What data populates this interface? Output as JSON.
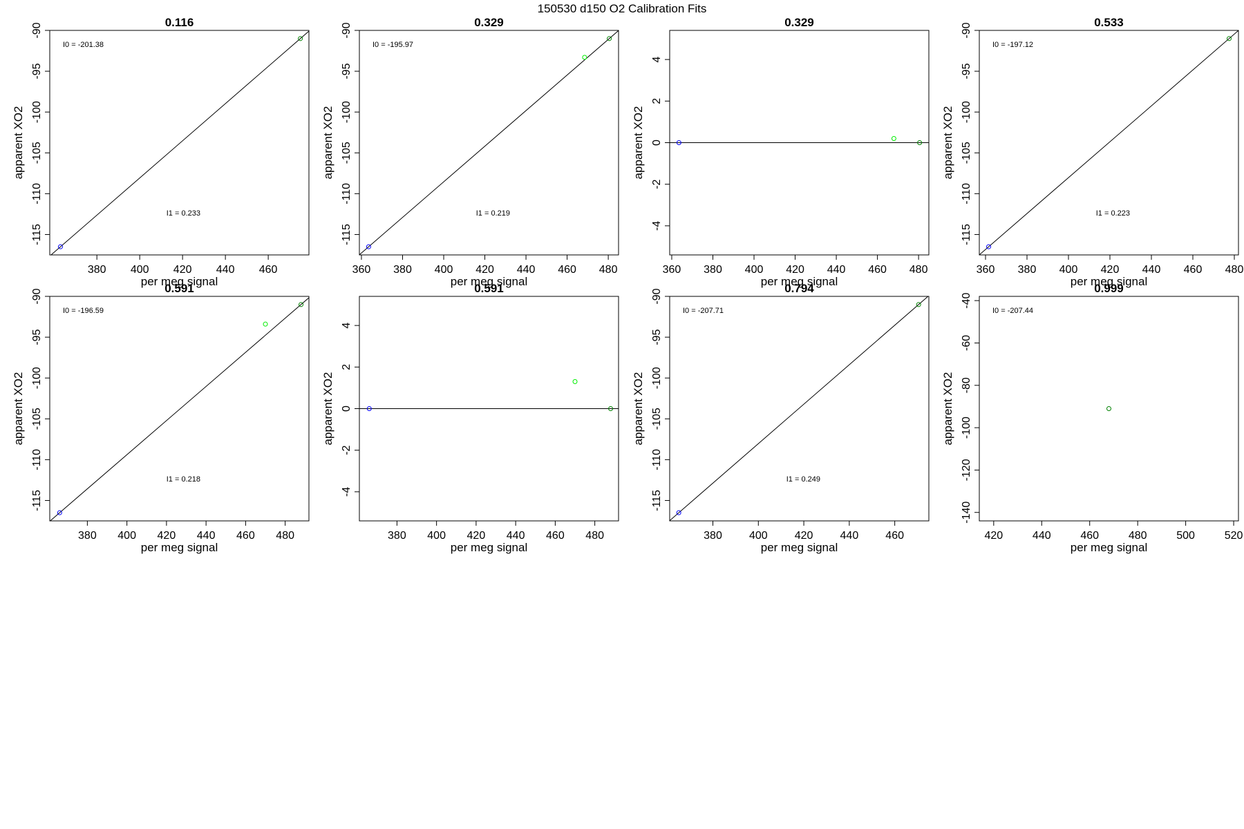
{
  "figure_title": "150530   d150   O2 Calibration Fits",
  "chart_data": [
    {
      "type": "scatter",
      "title": "0.116",
      "xlabel": "per meg signal",
      "ylabel": "apparent XO2",
      "xlim": [
        358,
        479
      ],
      "ylim": [
        -117.5,
        -90
      ],
      "xticks": [
        380,
        400,
        420,
        440,
        460
      ],
      "yticks": [
        -90,
        -95,
        -100,
        -105,
        -110,
        -115
      ],
      "points": [
        {
          "x": 363,
          "y": -116.5,
          "color": "#0000ff"
        },
        {
          "x": 475,
          "y": -91,
          "color": "#008000"
        }
      ],
      "fit_line": {
        "kind": "through",
        "x1": 363,
        "y1": -116.5,
        "x2": 475,
        "y2": -91
      },
      "annotations": {
        "i0": "I0 =  -201.38",
        "i1": "I1 =  0.233"
      }
    },
    {
      "type": "scatter",
      "title": "0.329",
      "xlabel": "per meg signal",
      "ylabel": "apparent XO2",
      "xlim": [
        359,
        485
      ],
      "ylim": [
        -117.5,
        -90
      ],
      "xticks": [
        360,
        380,
        400,
        420,
        440,
        460,
        480
      ],
      "yticks": [
        -90,
        -95,
        -100,
        -105,
        -110,
        -115
      ],
      "points": [
        {
          "x": 363.5,
          "y": -116.5,
          "color": "#0000ff"
        },
        {
          "x": 468.5,
          "y": -93.3,
          "color": "#00ee00"
        },
        {
          "x": 480.5,
          "y": -91,
          "color": "#008000"
        }
      ],
      "fit_line": {
        "kind": "through",
        "x1": 363.5,
        "y1": -116.5,
        "x2": 480.5,
        "y2": -91
      },
      "annotations": {
        "i0": "I0 =  -195.97",
        "i1": "I1 =  0.219"
      }
    },
    {
      "type": "scatter",
      "title": "0.329",
      "xlabel": "per meg signal",
      "ylabel": "apparent XO2",
      "xlim": [
        359,
        485
      ],
      "ylim": [
        -5.4,
        5.4
      ],
      "xticks": [
        360,
        380,
        400,
        420,
        440,
        460,
        480
      ],
      "yticks": [
        4,
        2,
        0,
        -2,
        -4
      ],
      "points": [
        {
          "x": 363.5,
          "y": 0,
          "color": "#0000ff"
        },
        {
          "x": 468,
          "y": 0.2,
          "color": "#00ee00"
        },
        {
          "x": 480.5,
          "y": 0,
          "color": "#008000"
        }
      ],
      "fit_line": {
        "kind": "horizontal",
        "y": 0
      }
    },
    {
      "type": "scatter",
      "title": "0.533",
      "xlabel": "per meg signal",
      "ylabel": "apparent XO2",
      "xlim": [
        357,
        482
      ],
      "ylim": [
        -117.5,
        -90
      ],
      "xticks": [
        360,
        380,
        400,
        420,
        440,
        460,
        480
      ],
      "yticks": [
        -90,
        -95,
        -100,
        -105,
        -110,
        -115
      ],
      "points": [
        {
          "x": 361.5,
          "y": -116.5,
          "color": "#0000ff"
        },
        {
          "x": 477.5,
          "y": -91,
          "color": "#008000"
        }
      ],
      "fit_line": {
        "kind": "through",
        "x1": 361.5,
        "y1": -116.5,
        "x2": 477.5,
        "y2": -91
      },
      "annotations": {
        "i0": "I0 =  -197.12",
        "i1": "I1 =  0.223"
      }
    },
    {
      "type": "scatter",
      "title": "0.591",
      "xlabel": "per meg signal",
      "ylabel": "apparent XO2",
      "xlim": [
        361,
        492
      ],
      "ylim": [
        -117.5,
        -90
      ],
      "xticks": [
        380,
        400,
        420,
        440,
        460,
        480
      ],
      "yticks": [
        -90,
        -95,
        -100,
        -105,
        -110,
        -115
      ],
      "points": [
        {
          "x": 366,
          "y": -116.5,
          "color": "#0000ff"
        },
        {
          "x": 470,
          "y": -93.4,
          "color": "#00ee00"
        },
        {
          "x": 488,
          "y": -91,
          "color": "#008000"
        }
      ],
      "fit_line": {
        "kind": "through",
        "x1": 366,
        "y1": -116.5,
        "x2": 488,
        "y2": -91
      },
      "annotations": {
        "i0": "I0 =  -196.59",
        "i1": "I1 =  0.218"
      }
    },
    {
      "type": "scatter",
      "title": "0.591",
      "xlabel": "per meg signal",
      "ylabel": "apparent XO2",
      "xlim": [
        361,
        492
      ],
      "ylim": [
        -5.4,
        5.4
      ],
      "xticks": [
        380,
        400,
        420,
        440,
        460,
        480
      ],
      "yticks": [
        4,
        2,
        0,
        -2,
        -4
      ],
      "points": [
        {
          "x": 366,
          "y": 0,
          "color": "#0000ff"
        },
        {
          "x": 470,
          "y": 1.3,
          "color": "#00ee00"
        },
        {
          "x": 488,
          "y": 0,
          "color": "#008000"
        }
      ],
      "fit_line": {
        "kind": "horizontal",
        "y": 0
      }
    },
    {
      "type": "scatter",
      "title": "0.794",
      "xlabel": "per meg signal",
      "ylabel": "apparent XO2",
      "xlim": [
        361,
        475
      ],
      "ylim": [
        -117.5,
        -90
      ],
      "xticks": [
        380,
        400,
        420,
        440,
        460
      ],
      "yticks": [
        -90,
        -95,
        -100,
        -105,
        -110,
        -115
      ],
      "points": [
        {
          "x": 365,
          "y": -116.5,
          "color": "#0000ff"
        },
        {
          "x": 470.5,
          "y": -91,
          "color": "#008000"
        }
      ],
      "fit_line": {
        "kind": "through",
        "x1": 365,
        "y1": -116.5,
        "x2": 470.5,
        "y2": -91
      },
      "annotations": {
        "i0": "I0 =  -207.71",
        "i1": "I1 =  0.249"
      }
    },
    {
      "type": "scatter",
      "title": "0.999",
      "xlabel": "per meg signal",
      "ylabel": "apparent XO2",
      "xlim": [
        414,
        522
      ],
      "ylim": [
        -144,
        -38
      ],
      "xticks": [
        420,
        440,
        460,
        480,
        500,
        520
      ],
      "yticks": [
        -40,
        -60,
        -80,
        -100,
        -120,
        -140
      ],
      "points": [
        {
          "x": 468,
          "y": -91,
          "color": "#008000"
        }
      ],
      "annotations": {
        "i0": "I0 =  -207.44"
      }
    }
  ]
}
